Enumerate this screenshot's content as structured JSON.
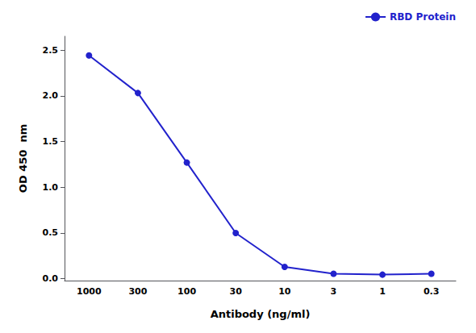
{
  "chart_data": {
    "type": "line",
    "xlabel": "Antibody (ng/ml)",
    "ylabel": "OD 450  nm",
    "categories": [
      "1000",
      "300",
      "100",
      "30",
      "10",
      "3",
      "1",
      "0.3"
    ],
    "series": [
      {
        "name": "RBD Protein",
        "color": "#2222CC",
        "marker": "circle",
        "values": [
          2.44,
          2.03,
          1.27,
          0.5,
          0.13,
          0.055,
          0.045,
          0.055
        ]
      }
    ],
    "ylim": [
      -0.02,
      2.65
    ],
    "yticks": [
      {
        "value": 0.0,
        "label": "0.0"
      },
      0.5,
      {
        "value": 1.0,
        "label": "1.0"
      },
      1.5,
      {
        "value": 2.0,
        "label": "2.0"
      },
      2.5
    ],
    "legend": "upper right",
    "grid": false
  }
}
